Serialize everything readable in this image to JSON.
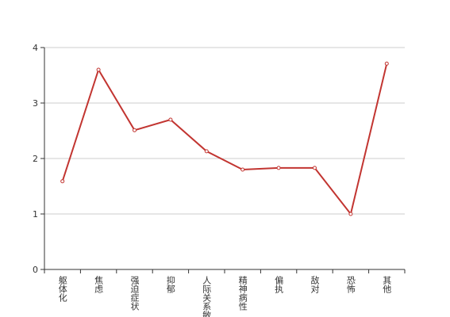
{
  "chart_data": {
    "type": "line",
    "categories": [
      "躯体化",
      "焦虑",
      "强迫症状",
      "抑郁",
      "人际关系敏感",
      "精神病性",
      "偏执",
      "敌对",
      "恐怖",
      "其他"
    ],
    "series": [
      {
        "color": "#c23531",
        "values": [
          1.59,
          3.6,
          2.51,
          2.7,
          2.13,
          1.8,
          1.83,
          1.83,
          1.0,
          3.71
        ]
      }
    ],
    "ylim": [
      0,
      4
    ],
    "yticks": [
      0,
      1,
      2,
      3,
      4
    ],
    "grid": true
  }
}
